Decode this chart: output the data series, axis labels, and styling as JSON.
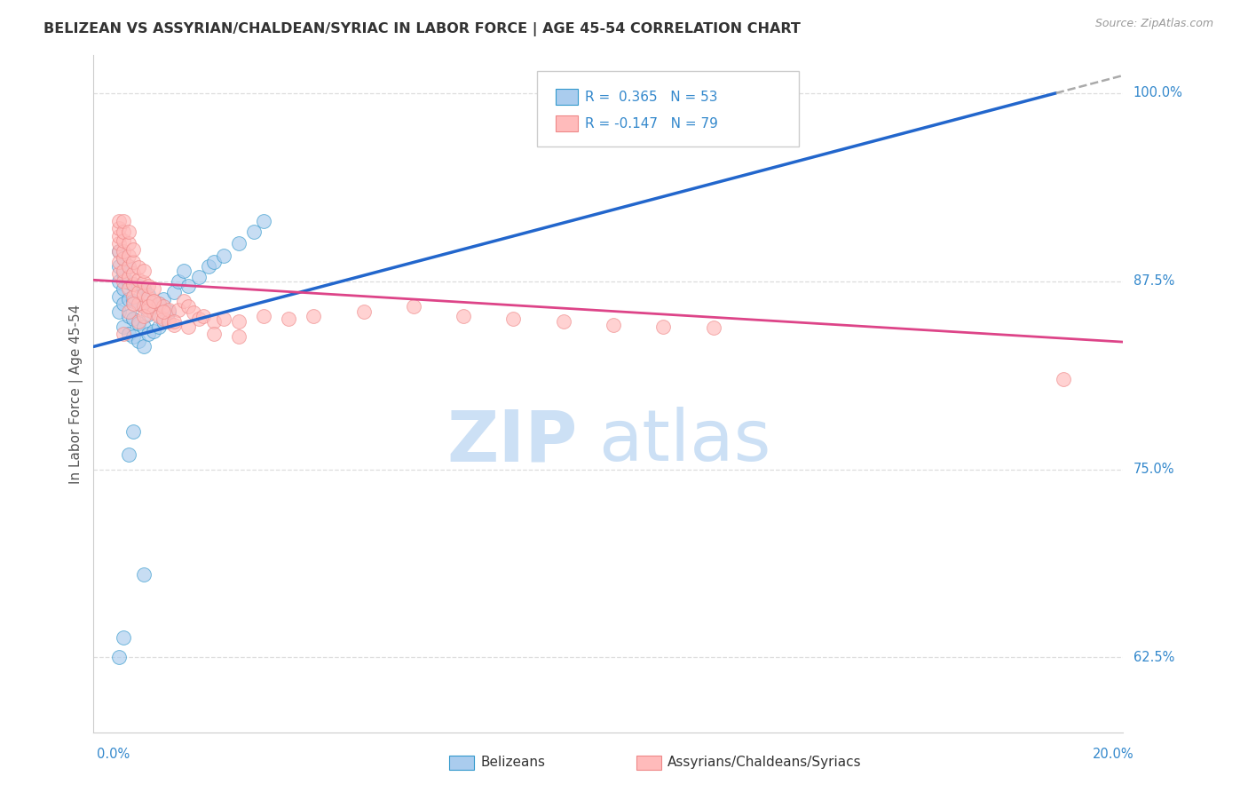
{
  "title": "BELIZEAN VS ASSYRIAN/CHALDEAN/SYRIAC IN LABOR FORCE | AGE 45-54 CORRELATION CHART",
  "source": "Source: ZipAtlas.com",
  "ylabel": "In Labor Force | Age 45-54",
  "ytick_labels": [
    "62.5%",
    "75.0%",
    "87.5%",
    "100.0%"
  ],
  "ytick_vals": [
    0.625,
    0.75,
    0.875,
    1.0
  ],
  "xlim_min": 0.0,
  "xlim_max": 0.2,
  "ylim_min": 0.575,
  "ylim_max": 1.025,
  "blue_fill": "#aaccee",
  "blue_edge": "#3399cc",
  "pink_fill": "#ffbbbb",
  "pink_edge": "#ee8888",
  "line_blue_color": "#2266cc",
  "line_pink_color": "#dd4488",
  "line_gray_color": "#aaaaaa",
  "label_color": "#3388cc",
  "title_color": "#333333",
  "grid_color": "#dddddd",
  "legend_blue_R": "0.365",
  "legend_blue_N": "53",
  "legend_pink_R": "-0.147",
  "legend_pink_N": "79",
  "legend_label_blue": "Belizeans",
  "legend_label_pink": "Assyrians/Chaldeans/Syriacs",
  "blue_x": [
    0.001,
    0.001,
    0.001,
    0.001,
    0.001,
    0.002,
    0.002,
    0.002,
    0.002,
    0.002,
    0.003,
    0.003,
    0.003,
    0.003,
    0.003,
    0.004,
    0.004,
    0.004,
    0.004,
    0.005,
    0.005,
    0.005,
    0.005,
    0.006,
    0.006,
    0.006,
    0.006,
    0.007,
    0.007,
    0.007,
    0.008,
    0.008,
    0.009,
    0.009,
    0.01,
    0.01,
    0.011,
    0.012,
    0.013,
    0.014,
    0.015,
    0.017,
    0.019,
    0.02,
    0.022,
    0.025,
    0.028,
    0.03,
    0.001,
    0.002,
    0.003,
    0.004,
    0.006
  ],
  "blue_y": [
    0.855,
    0.865,
    0.875,
    0.885,
    0.895,
    0.845,
    0.86,
    0.87,
    0.88,
    0.89,
    0.84,
    0.852,
    0.863,
    0.874,
    0.885,
    0.838,
    0.85,
    0.862,
    0.873,
    0.835,
    0.847,
    0.86,
    0.872,
    0.832,
    0.845,
    0.858,
    0.87,
    0.84,
    0.853,
    0.866,
    0.842,
    0.858,
    0.845,
    0.86,
    0.848,
    0.863,
    0.855,
    0.868,
    0.875,
    0.882,
    0.872,
    0.878,
    0.885,
    0.888,
    0.892,
    0.9,
    0.908,
    0.915,
    0.625,
    0.638,
    0.76,
    0.775,
    0.68
  ],
  "pink_x": [
    0.001,
    0.001,
    0.001,
    0.001,
    0.001,
    0.001,
    0.001,
    0.002,
    0.002,
    0.002,
    0.002,
    0.002,
    0.002,
    0.002,
    0.003,
    0.003,
    0.003,
    0.003,
    0.003,
    0.003,
    0.004,
    0.004,
    0.004,
    0.004,
    0.004,
    0.005,
    0.005,
    0.005,
    0.005,
    0.006,
    0.006,
    0.006,
    0.006,
    0.007,
    0.007,
    0.007,
    0.008,
    0.008,
    0.008,
    0.009,
    0.009,
    0.01,
    0.01,
    0.011,
    0.011,
    0.012,
    0.013,
    0.014,
    0.015,
    0.016,
    0.017,
    0.018,
    0.02,
    0.022,
    0.025,
    0.03,
    0.035,
    0.04,
    0.05,
    0.06,
    0.07,
    0.08,
    0.09,
    0.1,
    0.11,
    0.12,
    0.002,
    0.003,
    0.004,
    0.005,
    0.006,
    0.007,
    0.008,
    0.01,
    0.012,
    0.015,
    0.02,
    0.025,
    0.19
  ],
  "pink_y": [
    0.895,
    0.9,
    0.905,
    0.91,
    0.915,
    0.88,
    0.888,
    0.875,
    0.882,
    0.89,
    0.895,
    0.902,
    0.908,
    0.915,
    0.87,
    0.878,
    0.885,
    0.892,
    0.9,
    0.908,
    0.865,
    0.873,
    0.88,
    0.888,
    0.896,
    0.86,
    0.868,
    0.876,
    0.884,
    0.858,
    0.866,
    0.874,
    0.882,
    0.856,
    0.864,
    0.872,
    0.854,
    0.862,
    0.87,
    0.852,
    0.86,
    0.85,
    0.858,
    0.848,
    0.856,
    0.846,
    0.856,
    0.862,
    0.858,
    0.854,
    0.85,
    0.852,
    0.848,
    0.85,
    0.848,
    0.852,
    0.85,
    0.852,
    0.855,
    0.858,
    0.852,
    0.85,
    0.848,
    0.846,
    0.845,
    0.844,
    0.84,
    0.855,
    0.86,
    0.848,
    0.852,
    0.858,
    0.862,
    0.855,
    0.848,
    0.845,
    0.84,
    0.838,
    0.81
  ]
}
